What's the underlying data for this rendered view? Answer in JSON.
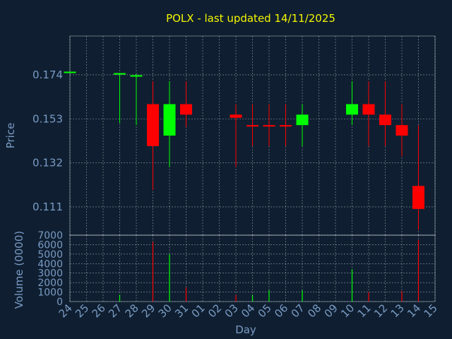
{
  "chart_data": [
    {
      "type": "candlestick",
      "title": "POLX - last updated 14/11/2025",
      "xlabel": "Day",
      "ylabel": "Price",
      "yticks": [
        "0.174",
        "0.153",
        "0.132",
        "0.111"
      ],
      "ylim": [
        0.0975,
        0.1925
      ],
      "grid": true,
      "colors": {
        "up": "#00ff00",
        "down": "#ff0000",
        "background": "#0f1f31",
        "axis_text": "#7a9bc4",
        "title": "#f5f500"
      },
      "days": [
        "24",
        "25",
        "26",
        "27",
        "28",
        "29",
        "30",
        "31",
        "01",
        "02",
        "03",
        "04",
        "05",
        "06",
        "07",
        "08",
        "09",
        "10",
        "11",
        "12",
        "13",
        "14",
        "15"
      ],
      "candles": [
        {
          "day": "24",
          "open": 0.1755,
          "high": 0.1755,
          "low": 0.1755,
          "close": 0.1755
        },
        {
          "day": "27",
          "open": 0.1745,
          "high": 0.175,
          "low": 0.151,
          "close": 0.1748
        },
        {
          "day": "28",
          "open": 0.1735,
          "high": 0.1745,
          "low": 0.15,
          "close": 0.1738
        },
        {
          "day": "29",
          "open": 0.16,
          "high": 0.171,
          "low": 0.119,
          "close": 0.14
        },
        {
          "day": "30",
          "open": 0.145,
          "high": 0.171,
          "low": 0.13,
          "close": 0.16
        },
        {
          "day": "31",
          "open": 0.16,
          "high": 0.171,
          "low": 0.149,
          "close": 0.155
        },
        {
          "day": "03",
          "open": 0.155,
          "high": 0.16,
          "low": 0.13,
          "close": 0.1535
        },
        {
          "day": "04",
          "open": 0.15,
          "high": 0.16,
          "low": 0.14,
          "close": 0.1495
        },
        {
          "day": "05",
          "open": 0.15,
          "high": 0.16,
          "low": 0.14,
          "close": 0.1495
        },
        {
          "day": "06",
          "open": 0.15,
          "high": 0.16,
          "low": 0.14,
          "close": 0.1495
        },
        {
          "day": "07",
          "open": 0.15,
          "high": 0.16,
          "low": 0.14,
          "close": 0.155
        },
        {
          "day": "10",
          "open": 0.155,
          "high": 0.171,
          "low": 0.15,
          "close": 0.16
        },
        {
          "day": "11",
          "open": 0.16,
          "high": 0.171,
          "low": 0.14,
          "close": 0.155
        },
        {
          "day": "12",
          "open": 0.155,
          "high": 0.171,
          "low": 0.14,
          "close": 0.15
        },
        {
          "day": "13",
          "open": 0.15,
          "high": 0.16,
          "low": 0.135,
          "close": 0.145
        },
        {
          "day": "14",
          "open": 0.121,
          "high": 0.15,
          "low": 0.1,
          "close": 0.11
        }
      ]
    },
    {
      "type": "bar",
      "ylabel": "Volume (0000)",
      "yticks": [
        "7000",
        "6000",
        "5000",
        "4000",
        "3000",
        "2000",
        "1000",
        "0"
      ],
      "ylim": [
        0,
        7000
      ],
      "categories": [
        "27",
        "29",
        "30",
        "31",
        "03",
        "04",
        "05",
        "07",
        "10",
        "11",
        "13",
        "14"
      ],
      "values": [
        700,
        6300,
        5000,
        1500,
        700,
        700,
        1200,
        1200,
        3400,
        1000,
        1100,
        6500
      ],
      "colors": [
        "#00ff00",
        "#ff0000",
        "#00ff00",
        "#ff0000",
        "#ff0000",
        "#00ff00",
        "#00ff00",
        "#00ff00",
        "#00ff00",
        "#ff0000",
        "#ff0000",
        "#ff0000"
      ]
    }
  ]
}
